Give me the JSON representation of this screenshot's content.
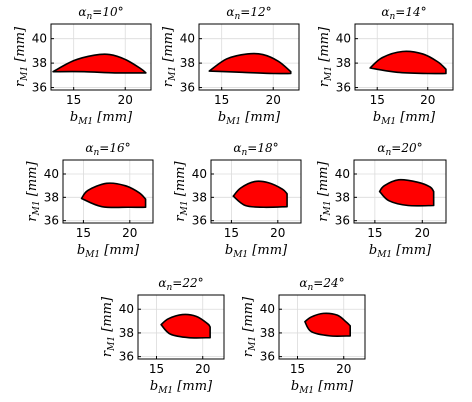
{
  "chart_data": [
    {
      "type": "area",
      "title": "αn=10°",
      "xlabel": "bM1 [mm]",
      "ylabel": "rM1 [mm]",
      "xlim": [
        12.8,
        22.5
      ],
      "ylim": [
        35.8,
        41.2
      ],
      "xticks": [
        15,
        20
      ],
      "yticks": [
        36,
        38,
        40
      ],
      "grid": true,
      "region_color": "#ff0000",
      "upper_boundary": {
        "x": [
          13.0,
          15.0,
          17.0,
          18.5,
          20.0,
          21.5,
          22.0
        ],
        "y": [
          37.3,
          38.2,
          38.65,
          38.7,
          38.3,
          37.55,
          37.2
        ]
      },
      "lower_boundary": {
        "x": [
          13.0,
          16.0,
          19.0,
          22.0
        ],
        "y": [
          37.3,
          37.3,
          37.2,
          37.2
        ]
      }
    },
    {
      "type": "area",
      "title": "αn=12°",
      "xlabel": "bM1 [mm]",
      "ylabel": "rM1 [mm]",
      "xlim": [
        12.8,
        22.5
      ],
      "ylim": [
        35.8,
        41.2
      ],
      "xticks": [
        15,
        20
      ],
      "yticks": [
        36,
        38,
        40
      ],
      "grid": true,
      "region_color": "#ff0000",
      "upper_boundary": {
        "x": [
          13.8,
          15.5,
          17.5,
          19.0,
          20.5,
          21.7
        ],
        "y": [
          37.35,
          38.35,
          38.75,
          38.7,
          38.15,
          37.3
        ]
      },
      "lower_boundary": {
        "x": [
          13.8,
          17.0,
          20.0,
          21.7
        ],
        "y": [
          37.35,
          37.25,
          37.15,
          37.15
        ]
      }
    },
    {
      "type": "area",
      "title": "αn=14°",
      "xlabel": "bM1 [mm]",
      "ylabel": "rM1 [mm]",
      "xlim": [
        12.8,
        22.5
      ],
      "ylim": [
        35.8,
        41.2
      ],
      "xticks": [
        15,
        20
      ],
      "yticks": [
        36,
        38,
        40
      ],
      "grid": true,
      "region_color": "#ff0000",
      "upper_boundary": {
        "x": [
          14.3,
          15.5,
          17.5,
          19.5,
          21.0,
          21.8
        ],
        "y": [
          37.6,
          38.45,
          38.95,
          38.75,
          38.1,
          37.5
        ]
      },
      "lower_boundary": {
        "x": [
          14.3,
          17.0,
          20.0,
          21.8
        ],
        "y": [
          37.6,
          37.25,
          37.15,
          37.15
        ]
      }
    },
    {
      "type": "area",
      "title": "αn=16°",
      "xlabel": "bM1 [mm]",
      "ylabel": "rM1 [mm]",
      "xlim": [
        12.8,
        22.5
      ],
      "ylim": [
        35.8,
        41.2
      ],
      "xticks": [
        15,
        20
      ],
      "yticks": [
        36,
        38,
        40
      ],
      "grid": true,
      "region_color": "#ff0000",
      "upper_boundary": {
        "x": [
          14.8,
          15.5,
          17.5,
          19.5,
          21.0,
          21.7
        ],
        "y": [
          37.9,
          38.6,
          39.2,
          39.0,
          38.4,
          37.85
        ]
      },
      "lower_boundary": {
        "x": [
          14.8,
          17.0,
          20.0,
          21.7
        ],
        "y": [
          37.9,
          37.2,
          37.15,
          37.15
        ]
      }
    },
    {
      "type": "area",
      "title": "αn=18°",
      "xlabel": "bM1 [mm]",
      "ylabel": "rM1 [mm]",
      "xlim": [
        12.8,
        22.5
      ],
      "ylim": [
        35.8,
        41.2
      ],
      "xticks": [
        15,
        20
      ],
      "yticks": [
        36,
        38,
        40
      ],
      "grid": true,
      "region_color": "#ff0000",
      "upper_boundary": {
        "x": [
          15.2,
          16.0,
          17.5,
          19.0,
          20.5,
          21.0
        ],
        "y": [
          38.1,
          38.8,
          39.35,
          39.25,
          38.7,
          38.3
        ]
      },
      "lower_boundary": {
        "x": [
          15.2,
          16.5,
          18.5,
          21.0
        ],
        "y": [
          38.1,
          37.3,
          37.15,
          37.2
        ]
      }
    },
    {
      "type": "area",
      "title": "αn=20°",
      "xlabel": "bM1 [mm]",
      "ylabel": "rM1 [mm]",
      "xlim": [
        12.8,
        22.5
      ],
      "ylim": [
        35.8,
        41.2
      ],
      "xticks": [
        15,
        20
      ],
      "yticks": [
        36,
        38,
        40
      ],
      "grid": true,
      "region_color": "#ff0000",
      "upper_boundary": {
        "x": [
          15.5,
          16.0,
          17.5,
          19.5,
          20.8,
          21.2
        ],
        "y": [
          38.5,
          39.0,
          39.5,
          39.3,
          38.9,
          38.5
        ]
      },
      "lower_boundary": {
        "x": [
          15.5,
          16.5,
          18.5,
          21.2
        ],
        "y": [
          38.5,
          37.7,
          37.3,
          37.3
        ]
      }
    },
    {
      "type": "area",
      "title": "αn=22°",
      "xlabel": "bM1 [mm]",
      "ylabel": "rM1 [mm]",
      "xlim": [
        13.0,
        22.3
      ],
      "ylim": [
        35.8,
        41.2
      ],
      "xticks": [
        15,
        20
      ],
      "yticks": [
        36,
        38,
        40
      ],
      "grid": true,
      "region_color": "#ff0000",
      "upper_boundary": {
        "x": [
          15.5,
          16.3,
          17.8,
          19.3,
          20.5,
          20.8
        ],
        "y": [
          38.7,
          39.2,
          39.55,
          39.4,
          38.8,
          38.5
        ]
      },
      "lower_boundary": {
        "x": [
          15.5,
          16.5,
          18.5,
          20.8
        ],
        "y": [
          38.7,
          37.9,
          37.6,
          37.6
        ]
      }
    },
    {
      "type": "area",
      "title": "αn=24°",
      "xlabel": "bM1 [mm]",
      "ylabel": "rM1 [mm]",
      "xlim": [
        13.0,
        22.3
      ],
      "ylim": [
        35.8,
        41.2
      ],
      "xticks": [
        15,
        20
      ],
      "yticks": [
        36,
        38,
        40
      ],
      "grid": true,
      "region_color": "#ff0000",
      "upper_boundary": {
        "x": [
          15.8,
          16.5,
          17.8,
          19.3,
          20.3,
          20.7
        ],
        "y": [
          38.95,
          39.35,
          39.65,
          39.5,
          38.9,
          38.6
        ]
      },
      "lower_boundary": {
        "x": [
          15.8,
          16.5,
          18.5,
          20.7
        ],
        "y": [
          38.95,
          38.1,
          37.75,
          37.75
        ]
      }
    }
  ]
}
